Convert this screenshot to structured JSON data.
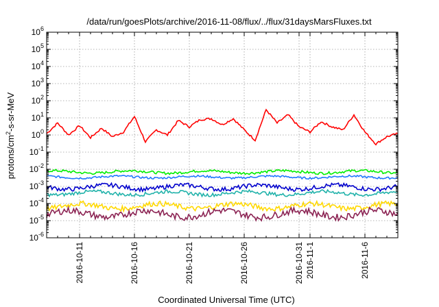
{
  "chart_data": {
    "type": "line",
    "title": "/data/run/goesPlots/archive/2016-11-08/flux/../flux/31daysMarsFluxes.txt",
    "xlabel": "Coordinated Universal Time (UTC)",
    "ylabel": {
      "base": "protons/cm",
      "sup": "2",
      "rest": "-s-sr-MeV"
    },
    "x_range": [
      "2016-10-08",
      "2016-11-09"
    ],
    "y_scale": "log",
    "ylim": [
      1e-06,
      1000000.0
    ],
    "grid": true,
    "y_ticks": [
      {
        "base": "10",
        "exp": "-6",
        "value": 1e-06
      },
      {
        "base": "10",
        "exp": "-5",
        "value": 1e-05
      },
      {
        "base": "10",
        "exp": "-4",
        "value": 0.0001
      },
      {
        "base": "10",
        "exp": "-3",
        "value": 0.001
      },
      {
        "base": "10",
        "exp": "-2",
        "value": 0.01
      },
      {
        "base": "10",
        "exp": "-1",
        "value": 0.1
      },
      {
        "base": "10",
        "exp": "0",
        "value": 1
      },
      {
        "base": "10",
        "exp": "1",
        "value": 10
      },
      {
        "base": "10",
        "exp": "2",
        "value": 100
      },
      {
        "base": "10",
        "exp": "3",
        "value": 1000
      },
      {
        "base": "10",
        "exp": "4",
        "value": 10000
      },
      {
        "base": "10",
        "exp": "5",
        "value": 100000
      },
      {
        "base": "10",
        "exp": "6",
        "value": 1000000
      }
    ],
    "x_ticks": [
      {
        "label": "2016-10-11",
        "date": "2016-10-11"
      },
      {
        "label": "2016-10-16",
        "date": "2016-10-16"
      },
      {
        "label": "2016-10-21",
        "date": "2016-10-21"
      },
      {
        "label": "2016-10-26",
        "date": "2016-10-26"
      },
      {
        "label": "2016-10-31",
        "date": "2016-10-31"
      },
      {
        "label": "2016-11-1",
        "date": "2016-11-01"
      },
      {
        "label": "2016-11-6",
        "date": "2016-11-06"
      }
    ],
    "series": [
      {
        "color": "#ff0000",
        "points": [
          [
            "2016-10-08",
            1.2
          ],
          [
            "2016-10-09",
            5.0
          ],
          [
            "2016-10-10",
            1.0
          ],
          [
            "2016-10-11",
            3.5
          ],
          [
            "2016-10-12",
            0.7
          ],
          [
            "2016-10-13",
            2.5
          ],
          [
            "2016-10-14",
            0.8
          ],
          [
            "2016-10-15",
            1.5
          ],
          [
            "2016-10-16",
            12.0
          ],
          [
            "2016-10-17",
            0.4
          ],
          [
            "2016-10-18",
            2.0
          ],
          [
            "2016-10-19",
            1.0
          ],
          [
            "2016-10-20",
            7.0
          ],
          [
            "2016-10-21",
            3.0
          ],
          [
            "2016-10-22",
            8.0
          ],
          [
            "2016-10-23",
            9.0
          ],
          [
            "2016-10-24",
            4.0
          ],
          [
            "2016-10-25",
            9.0
          ],
          [
            "2016-10-26",
            2.0
          ],
          [
            "2016-10-27",
            0.5
          ],
          [
            "2016-10-28",
            30.0
          ],
          [
            "2016-10-29",
            5.0
          ],
          [
            "2016-10-30",
            15.0
          ],
          [
            "2016-10-31",
            3.0
          ],
          [
            "2016-11-01",
            1.5
          ],
          [
            "2016-11-02",
            6.0
          ],
          [
            "2016-11-03",
            3.0
          ],
          [
            "2016-11-04",
            2.0
          ],
          [
            "2016-11-05",
            15.0
          ],
          [
            "2016-11-06",
            1.5
          ],
          [
            "2016-11-07",
            0.3
          ],
          [
            "2016-11-08",
            0.8
          ],
          [
            "2016-11-09",
            1.2
          ]
        ]
      },
      {
        "color": "#00ee00",
        "base": 0.007,
        "noise": 0.15
      },
      {
        "color": "#1e78ff",
        "base": 0.0035,
        "noise": 0.12
      },
      {
        "color": "#0000cd",
        "base": 0.0009,
        "noise": 0.25
      },
      {
        "color": "#20b2aa",
        "base": 0.0004,
        "noise": 0.2
      },
      {
        "color": "#ffd800",
        "base": 7e-05,
        "noise": 0.3
      },
      {
        "color": "#8b2252",
        "base": 2.5e-05,
        "noise": 0.4
      }
    ]
  }
}
